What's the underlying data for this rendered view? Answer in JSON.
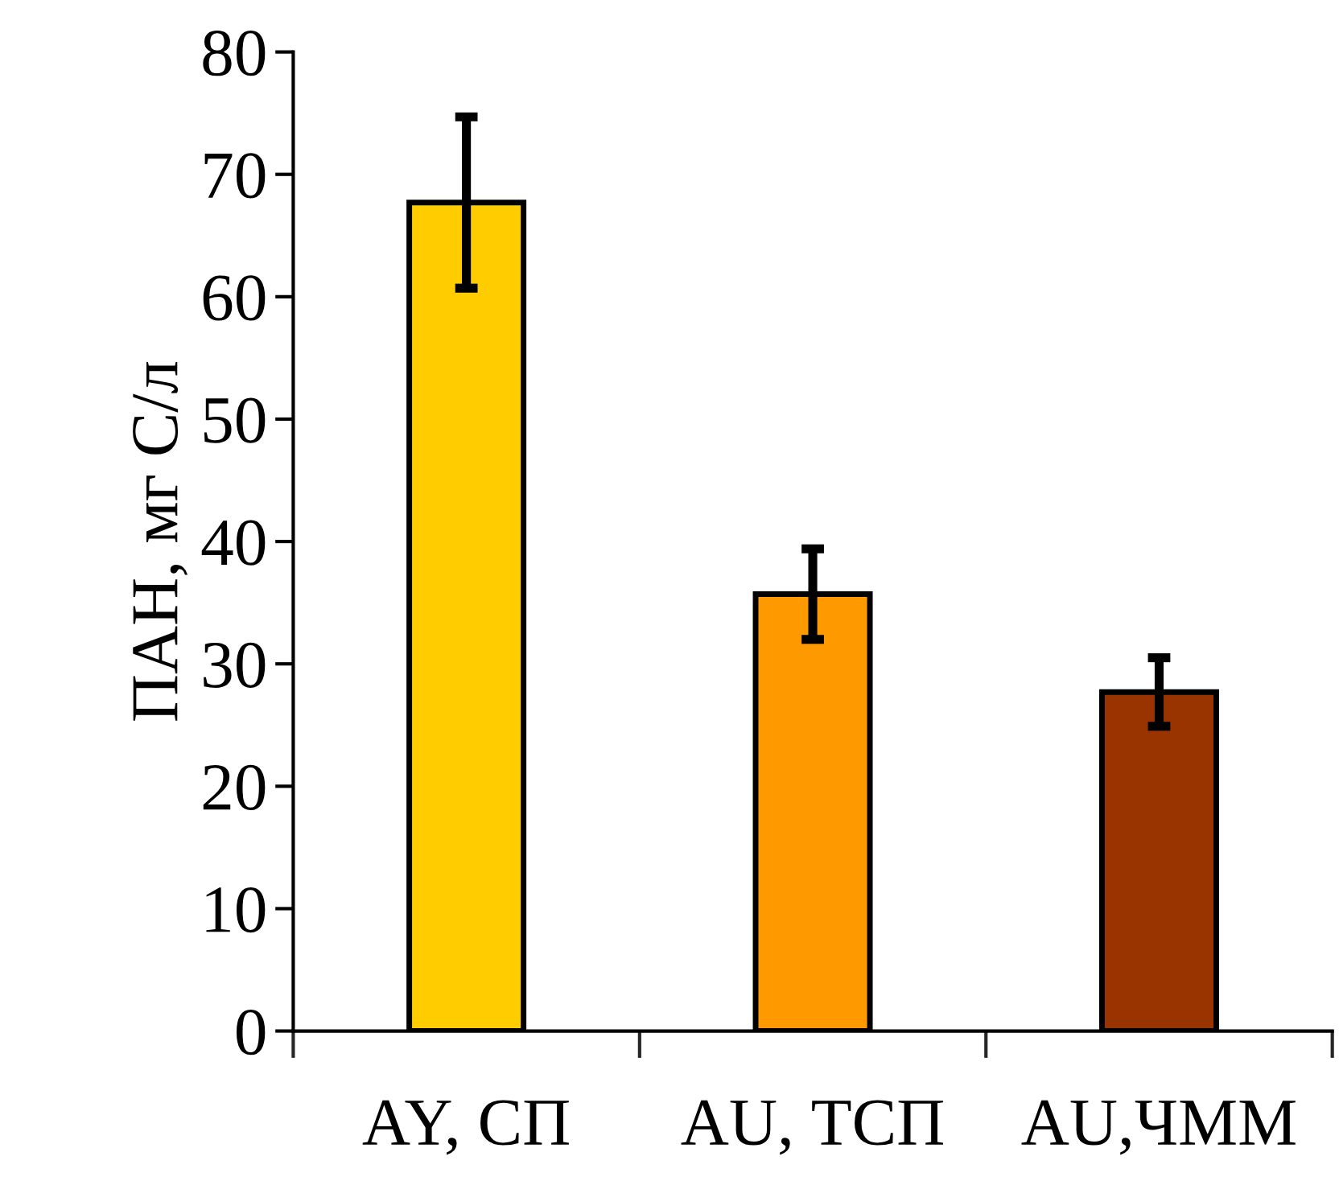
{
  "chart_data": {
    "type": "bar",
    "ylabel": "ПАН, мг С/л",
    "categories": [
      "AY, СП",
      "AU, ТСП",
      "AU,ЧММ"
    ],
    "values": [
      67.7,
      35.7,
      27.7
    ],
    "errors": [
      7,
      3.7,
      2.8
    ],
    "colors": [
      "#ffcc00",
      "#ff9900",
      "#993300"
    ],
    "ylim": [
      0,
      80
    ],
    "yticks": [
      0,
      10,
      20,
      30,
      40,
      50,
      60,
      70,
      80
    ],
    "grid": false
  }
}
